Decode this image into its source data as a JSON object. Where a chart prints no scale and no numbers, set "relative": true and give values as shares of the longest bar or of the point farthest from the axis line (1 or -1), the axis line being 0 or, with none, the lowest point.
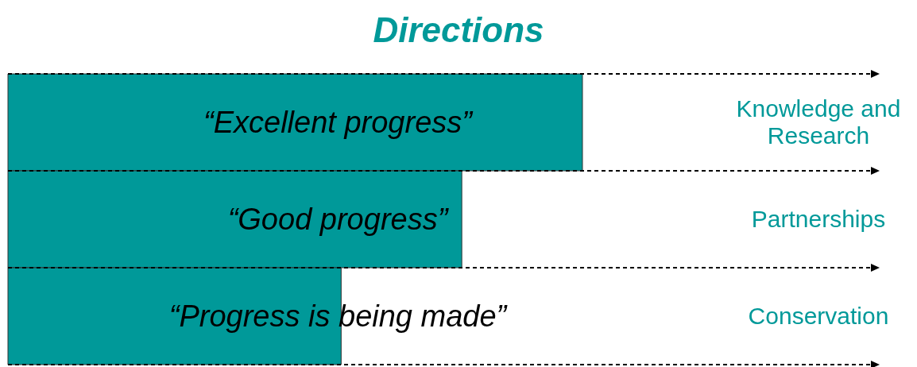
{
  "chart_data": {
    "type": "bar",
    "orientation": "horizontal",
    "relative": true,
    "title": "Directions",
    "categories": [
      "Knowledge and Research",
      "Partnerships",
      "Conservation"
    ],
    "values": [
      1,
      0.79,
      0.58
    ],
    "annotations": [
      "“Excellent progress”",
      "“Good progress”",
      "“Progress is being made”"
    ],
    "color": "#009999"
  }
}
